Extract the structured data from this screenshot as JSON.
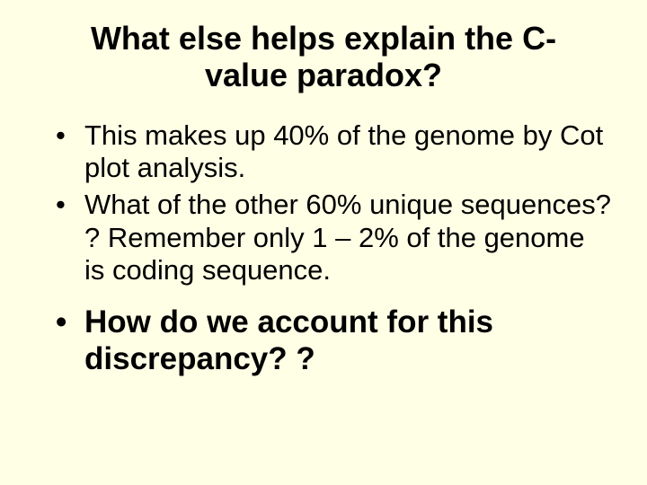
{
  "slide": {
    "background_color": "#ffffe6",
    "text_color": "#000000",
    "title": "What else helps explain the C-value paradox?",
    "title_fontsize": 36,
    "title_fontweight": "bold",
    "bullets": [
      {
        "text": "This makes up 40% of the genome by Cot plot analysis.",
        "bold": false,
        "fontsize": 31
      },
      {
        "text": "What of the other 60% unique sequences? ? Remember only 1 – 2% of the genome is coding sequence.",
        "bold": false,
        "fontsize": 31
      },
      {
        "text": "How do we account for this discrepancy? ?",
        "bold": true,
        "fontsize": 35
      }
    ]
  }
}
